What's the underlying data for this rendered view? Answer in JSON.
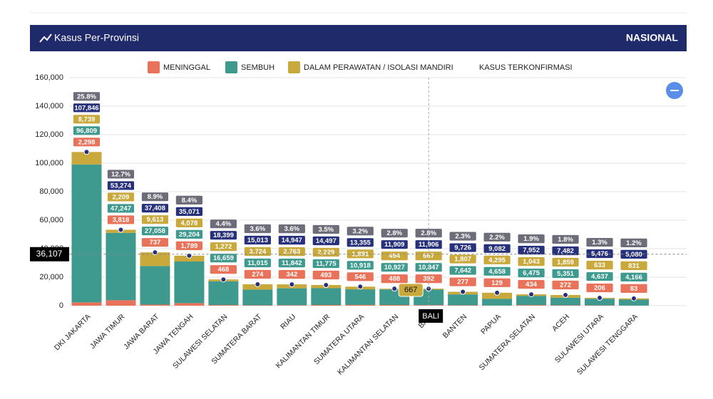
{
  "header": {
    "title": "Kasus Per-Provinsi",
    "scope": "NASIONAL"
  },
  "chart_data": {
    "type": "bar",
    "stacked": true,
    "categories": [
      "DKI JAKARTA",
      "JAWA TIMUR",
      "JAWA BARAT",
      "JAWA TENGAH",
      "SULAWESI SELATAN",
      "SUMATERA BARAT",
      "RIAU",
      "KALIMANTAN TIMUR",
      "SUMATERA UTARA",
      "KALIMANTAN SELATAN",
      "BALI",
      "BANTEN",
      "PAPUA",
      "SUMATERA SELATAN",
      "ACEH",
      "SULAWESI UTARA",
      "SULAWESI TENGGARA"
    ],
    "series": [
      {
        "name": "MENINGGAL",
        "color": "#e8735a",
        "values": [
          2298,
          3818,
          737,
          1789,
          468,
          274,
          342,
          493,
          546,
          488,
          392,
          277,
          129,
          434,
          272,
          206,
          83
        ],
        "value_labels": [
          "2,298",
          "3,818",
          "737",
          "1,789",
          "468",
          "274",
          "342",
          "493",
          "546",
          "488",
          "392",
          "277",
          "129",
          "434",
          "272",
          "206",
          "83"
        ]
      },
      {
        "name": "SEMBUH",
        "color": "#3e9a8e",
        "values": [
          96809,
          47247,
          27058,
          29204,
          16659,
          11015,
          11842,
          11775,
          10918,
          10927,
          10847,
          7642,
          4658,
          6475,
          5351,
          4637,
          4166
        ],
        "value_labels": [
          "96,809",
          "47,247",
          "27,058",
          "29,204",
          "16,659",
          "11,015",
          "11,842",
          "11,775",
          "10,918",
          "10,927",
          "10,847",
          "7,642",
          "4,658",
          "6,475",
          "5,351",
          "4,637",
          "4,166"
        ]
      },
      {
        "name": "DALAM PERAWATAN / ISOLASI MANDIRI",
        "color": "#c9a93b",
        "values": [
          8739,
          2209,
          9613,
          4078,
          1272,
          3724,
          2763,
          2229,
          1891,
          494,
          667,
          1807,
          4295,
          1043,
          1859,
          633,
          831
        ],
        "value_labels": [
          "8,739",
          "2,209",
          "9,613",
          "4,078",
          "1,272",
          "3,724",
          "2,763",
          "2,229",
          "1,891",
          "494",
          "667",
          "1,807",
          "4,295",
          "1,043",
          "1,859",
          "633",
          "831"
        ]
      }
    ],
    "total": {
      "name": "KASUS TERKONFIRMASI",
      "color": "#27307a",
      "values": [
        107846,
        53274,
        37408,
        35071,
        18399,
        15013,
        14947,
        14497,
        13355,
        11909,
        11906,
        9726,
        9082,
        7952,
        7482,
        5476,
        5080
      ],
      "value_labels": [
        "107,846",
        "53,274",
        "37,408",
        "35,071",
        "18,399",
        "15,013",
        "14,947",
        "14,497",
        "13,355",
        "11,909",
        "11,906",
        "9,726",
        "9,082",
        "7,952",
        "7,482",
        "5,476",
        "5,080"
      ]
    },
    "share": {
      "values": [
        25.8,
        12.7,
        8.9,
        8.4,
        4.4,
        3.6,
        3.6,
        3.5,
        3.2,
        2.8,
        2.8,
        2.3,
        2.2,
        1.9,
        1.8,
        1.3,
        1.2
      ],
      "value_labels": [
        "25.8%",
        "12.7%",
        "8.9%",
        "8.4%",
        "4.4%",
        "3.6%",
        "3.6%",
        "3.5%",
        "3.2%",
        "2.8%",
        "2.8%",
        "2.3%",
        "2.2%",
        "1.9%",
        "1.8%",
        "1.3%",
        "1.2%"
      ]
    },
    "ylim": [
      0,
      160000
    ],
    "yticks": [
      0,
      {
        "value": 20000,
        "label": "20,000"
      },
      {
        "value": 40000,
        "label": "40,000"
      },
      {
        "value": 60000,
        "label": "60,000"
      },
      {
        "value": 80000,
        "label": "80,000"
      },
      {
        "value": 100000,
        "label": "100,000"
      },
      {
        "value": 120000,
        "label": "120,000"
      },
      {
        "value": 140000,
        "label": "140,000"
      },
      {
        "value": 160000,
        "label": "160,000"
      }
    ],
    "grid": true,
    "crosshair": {
      "value": 36107,
      "label": "36,107"
    },
    "tooltip": {
      "label": "BALI",
      "value": 667
    }
  }
}
